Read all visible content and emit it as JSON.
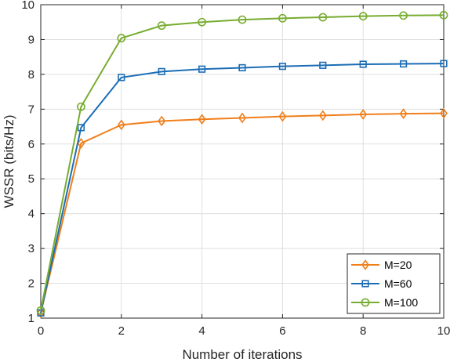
{
  "chart_data": {
    "type": "line",
    "title": "",
    "xlabel": "Number of iterations",
    "ylabel": "WSSR (bits/Hz)",
    "xlim": [
      0,
      10
    ],
    "ylim": [
      1,
      10
    ],
    "xticks": [
      0,
      2,
      4,
      6,
      8,
      10
    ],
    "yticks": [
      1,
      2,
      3,
      4,
      5,
      6,
      7,
      8,
      9,
      10
    ],
    "grid": true,
    "legend_position": "bottom-right",
    "x": [
      0,
      1,
      2,
      3,
      4,
      5,
      6,
      7,
      8,
      9,
      10
    ],
    "series": [
      {
        "name": "M=20",
        "color": "#F07F1A",
        "marker": "diamond",
        "values": [
          1.15,
          6.02,
          6.55,
          6.66,
          6.71,
          6.75,
          6.79,
          6.82,
          6.85,
          6.87,
          6.88
        ]
      },
      {
        "name": "M=60",
        "color": "#1B6DB5",
        "marker": "square",
        "values": [
          1.15,
          6.47,
          7.91,
          8.08,
          8.15,
          8.19,
          8.23,
          8.26,
          8.29,
          8.3,
          8.31
        ]
      },
      {
        "name": "M=100",
        "color": "#77AC30",
        "marker": "circle",
        "values": [
          1.22,
          7.07,
          9.04,
          9.4,
          9.5,
          9.57,
          9.61,
          9.64,
          9.67,
          9.69,
          9.7
        ]
      }
    ]
  }
}
